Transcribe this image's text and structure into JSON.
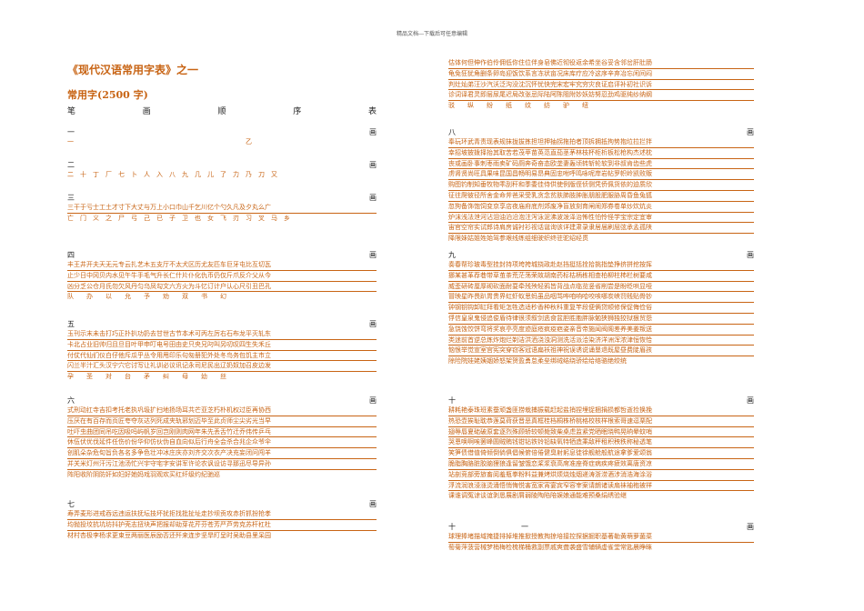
{
  "header_note": "精品文档---下载后可任意编辑",
  "title": "《现代汉语常用字表》之一",
  "subtitle": "常用字(2500 字)",
  "table_head": [
    "笔",
    "画",
    "顺",
    "序",
    "表"
  ],
  "sections": {
    "s1": {
      "num": "一",
      "word": "画",
      "lines": [
        "一　　　　　　　　　　　　　　　　　　　　　　　　　　　乙"
      ]
    },
    "s2": {
      "num": "二",
      "word": "画",
      "lines": [
        "二　十　丁　厂　七　卜　人　入　八　九　几　儿　了　力　乃　刀　又"
      ]
    },
    "s3": {
      "num": "三",
      "word": "画",
      "lines": [
        "三干于亏士工土才寸下大丈与万上小口巾山千乞川亿个勺久凡及夕丸么广",
        "亡　门　义　之　尸　弓　己　已　子　卫　也　女　飞　刃　习　叉　马　乡"
      ]
    },
    "s4": {
      "num": "四",
      "word": "画",
      "lines": [
        "丰王井开夫天无元专云扎艺木五支厅不太犬区历尤友匹车巨牙屯比互切瓦",
        "止少日中冈贝内水见午牛手毛气升长仁什片仆化仇币仍仅斤爪反介父从今",
        "凶分乏公仓月氏勿欠风丹匀乌凤勾文六方火为斗忆订计户认心尺引丑巴孔",
        "队　　办　　以　　允　　予　　劝　　双　　书　　幻"
      ]
    },
    "s5": {
      "num": "五",
      "word": "画",
      "lines": [
        "玉刊示末未击打巧正扑扒功扔去甘世古节本术可丙左厉右石布龙平灭轧东",
        "卡北占业旧帅归且旦目叶甲申叮电号田由史只央兄叼叫另叨叹四生失禾丘",
        "付仗代仙们仪白仔他斥瓜乎丛令用甩印乐句匆册犯外处冬鸟务包饥主市立",
        "闪兰半汁汇头汉宁穴它讨写让礼训必议讯记永司尼民出辽奶奴加召皮边发",
        "孕　　圣　　对　　台　　矛　　纠　　母　　幼　　丝"
      ]
    },
    "s6": {
      "num": "六",
      "word": "画",
      "lines": [
        "式刑动扛寺吉扣考托老执巩圾扩扫地扬场耳共芒亚芝朽朴机权过臣再协西",
        "压厌在有百存而页匠夸夺灰达列死成夹轨邪划迈毕至此贞师尘尖劣光当早",
        "吐吓虫曲团同吊吃因吸吗屿帆岁回岂刚则肉网年朱先丢舌竹迁乔伟传乒乓",
        "休伍伏优伐延件任伤价份华仰仿伙伪自血向似后行舟全会杀合兆企众爷伞",
        "创肌朵杂危旬旨负各名多争色壮冲冰庄庆亦刘齐交次衣产决充妄闭问闯羊",
        "并关米灯州汗污江池汤忙兴宇守宅字安讲军许论农讽设访寻那迅尽导异孙",
        "阵阳收阶阴防奸如妇好她妈戏羽观欢买红纤级约纪驰巡"
      ]
    },
    "s7": {
      "num": "七",
      "word": "画",
      "lines": [
        "寿弄麦形进戒吞远违运扶抚坛技坏扰拒找批扯址走抄坝贡攻赤折抓扮抢孝",
        "均抛投坟抗坑坊抖护壳志扭块声把报却劫芽花芹芬苍芳严芦劳克苏杆杠杜",
        "材村杏极李杨求更束豆两丽医辰励否还歼来连步坚旱盯呈时吴助县里呆园"
      ]
    },
    "r-top": {
      "lines": [
        "估体何但伸作伯伶佣低你住位伴身皂佛近彻役返余希坐谷妥含邻岔肝肚肠",
        "龟免狂犹角删条卵岛迎饭饮系言冻状亩况床库疗应冷这序辛弃冶忘闲间闷",
        "判灶灿弟汪沙汽沃泛沟没沈沉怀忧快完宋宏牢究穷灾良证启评补初社识诉",
        "诊词译君灵即层尿尾迟局改张忌际陆阿陈阻附妙妖妨努忍劲鸡驱纯纱纳纲",
        "驳　　纵　　纷　　纸　　纹　　纺　　驴　　纽"
      ]
    },
    "s8": {
      "num": "八",
      "word": "画",
      "lines": [
        "奉玩环武青责现表规抹拢拔拣担坦押抽拐拖拍者顶拆拥抵拘势抱垃拉拦拌",
        "幸招坡披拨择抬其取苦若茂苹苗英范直茄茎茅林枝杯柜析板松枪构杰述枕",
        "丧或画卧事刺枣雨卖矿码厕奔奇奋态欧垄妻轰顷转斩轮软到非叔肯齿些虎",
        "虏肾贤尚旺具果味昆国昌畅明易昂典固忠咐呼鸣咏呢岸岩帖罗帜岭凯败贩",
        "购图钓制知垂牧物乖刮秆和季委佳侍供使例版侄侦侧凭侨佩货依的迫质欣",
        "征往爬彼径所舍金命斧爸采受乳贪念贫肤肺肢肿胀朋股肥服胁周昏鱼兔狐",
        "忽狗备饰饱饲变京享店夜庙府底剂郊废净盲放刻育闸闹郑券卷单炒炊炕炎",
        "炉沫浅法泄河沾泪油泊沿泡注泻泳泥沸波泼泽治怖性怕怜怪学宝宗定宜审",
        "宙官空帘实试郎诗肩房诚衬衫视话诞询该详建肃录隶居届刷屈弦承孟孤陕",
        "降限妹姑姐姓始驾参艰线练组细驶织终驻驼绍经贯"
      ]
    },
    "s9": {
      "num": "九",
      "word": "画",
      "lines": [
        "奏春帮珍玻毒型挂封持项垮挎城挠政赴赵挡挺括拴拾挑指垫挣挤拼挖按挥",
        "挪某甚革荐巷带草茧茶荒茫荡荣故胡南药标枯柄栋相查柏柳柱柿栏树要咸",
        "威歪研砖厘厚砌砍面耐耍牵残殃轻鸦皆背战点临览竖省削尝是盼眨哄显哑",
        "冒映星昨畏趴胃贵界虹虾蚁思蚂虽品咽骂哗咱响哈咬咳哪炭峡罚贱贴骨钞",
        "钟钢钥钩卸缸拜看矩怎牲选适秒香种秋科重复竿段便俩贷顺修保促侮俭俗",
        "俘信皇泉鬼侵追俊盾待律很须叙剑逃食盆胆胜胞胖脉勉狭狮独狡狱狠贸怨",
        "急饶蚀饺饼弯将奖哀亭亮度迹庭疮疯疫疤姿亲音帝施闻阀阁差养美姜叛送",
        "类迷前首逆总炼炸炮烂剃洁洪洒浇浊洞测洗活派洽染济洋洲浑浓津恒恢恰",
        "恼恨举觉宣室宫宪突穿窃客冠语扁袄祖神祝误诱说诵垦退既屋昼费陡眉孩",
        "除险院娃姥姨姻娇怒架贺盈勇怠柔垒绑绒结绕骄绘给络骆绝绞统"
      ]
    },
    "s10": {
      "num": "十",
      "word": "画",
      "lines": [
        "耕耗艳泰珠班素蚕顽盏匪捞栽捕振载赶起盐捎捏埋捉捆捐损都哲逝捡换挽",
        "热恐壶挨耻耽恭莲莫荷获晋恶真框桂档桐株桥桃格校核样根索哥速逗栗配",
        "翅辱唇夏础破原套逐烈殊顾轿较顿毙致柴桌虑监紧党晒眠晓鸭晃晌晕蚊哨",
        "哭恩唤啊唉罢峰圆贼贿钱钳钻铁铃铅缺氧特牺造乘敌秤租积秧秩称秘透笔",
        "笑笋债借值倚倾倒倘俱倡候俯倍倦健臭射躬息徒徐舰舱般航途拿爹爱颂翁",
        "脆脂胸胳脏胶脑狸狼逢留皱饿恋桨浆衰高席准座脊症病疾疼疲效离唐资凉",
        "站剖竞部旁旅畜阅羞瓶拳粉料益兼烤烘烦烧烛烟递涛浙涝酒涉消浩海涂浴",
        "浮流润浪浸涨烫涌悟悄悔悦害宽家宵宴宾窄容宰案请朗诸读扇袜袖袍被祥",
        "课谁调冤谅谈谊剥恳展剧屑弱陵陶陷陪娱娘通能难预桑绢绣验继"
      ]
    },
    "s11": {
      "num": "十　　　　　　　　　一",
      "word": "画",
      "lines": [
        "球理捧堵描域掩捷排掉堆推掀授教掏掠培接控探据掘职基著勒黄萌萝菌菜",
        "萄菊萍菠营械梦梢梅检梳梯桶救副票戚爽聋袭盛雪辅辆虚雀堂常匙晨睁眯"
      ]
    }
  }
}
